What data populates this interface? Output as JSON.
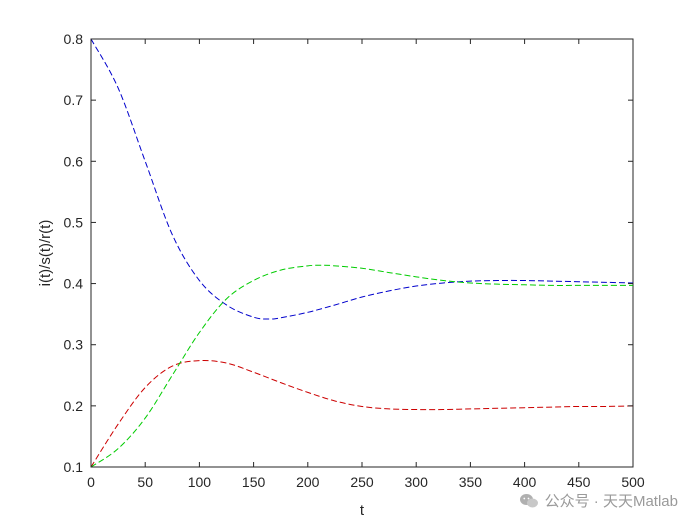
{
  "chart_data": {
    "type": "line",
    "title": "",
    "xlabel": "t",
    "ylabel": "i(t)/s(t)/r(t)",
    "xlim": [
      0,
      500
    ],
    "ylim": [
      0.1,
      0.8
    ],
    "xticks": [
      0,
      50,
      100,
      150,
      200,
      250,
      300,
      350,
      400,
      450,
      500
    ],
    "yticks": [
      0.1,
      0.2,
      0.3,
      0.4,
      0.5,
      0.6,
      0.7,
      0.8
    ],
    "grid": false,
    "legend": "none",
    "series": [
      {
        "color": "#0000cc",
        "style": "dashed",
        "x": [
          0,
          25,
          50,
          75,
          100,
          125,
          150,
          165,
          175,
          200,
          225,
          250,
          275,
          300,
          325,
          350,
          375,
          400,
          425,
          450,
          475,
          500
        ],
        "y": [
          0.8,
          0.72,
          0.6,
          0.48,
          0.405,
          0.365,
          0.345,
          0.342,
          0.344,
          0.353,
          0.365,
          0.378,
          0.388,
          0.396,
          0.401,
          0.404,
          0.405,
          0.405,
          0.404,
          0.403,
          0.402,
          0.401
        ]
      },
      {
        "color": "#cc0000",
        "style": "dashed",
        "x": [
          0,
          25,
          50,
          75,
          100,
          125,
          150,
          175,
          200,
          225,
          250,
          275,
          300,
          325,
          350,
          375,
          400,
          425,
          450,
          475,
          500
        ],
        "y": [
          0.1,
          0.17,
          0.23,
          0.265,
          0.274,
          0.27,
          0.255,
          0.238,
          0.222,
          0.208,
          0.199,
          0.195,
          0.194,
          0.194,
          0.195,
          0.196,
          0.197,
          0.198,
          0.199,
          0.199,
          0.2
        ]
      },
      {
        "color": "#00cc00",
        "style": "dashed",
        "x": [
          0,
          25,
          50,
          75,
          100,
          125,
          150,
          175,
          200,
          215,
          225,
          250,
          275,
          300,
          325,
          350,
          375,
          400,
          425,
          450,
          475,
          500
        ],
        "y": [
          0.1,
          0.13,
          0.18,
          0.25,
          0.32,
          0.375,
          0.405,
          0.422,
          0.429,
          0.43,
          0.429,
          0.425,
          0.418,
          0.411,
          0.405,
          0.401,
          0.399,
          0.398,
          0.397,
          0.397,
          0.397,
          0.397
        ]
      }
    ]
  },
  "watermark": {
    "text": "公众号 · 天天Matlab",
    "icon": "wechat-icon"
  }
}
